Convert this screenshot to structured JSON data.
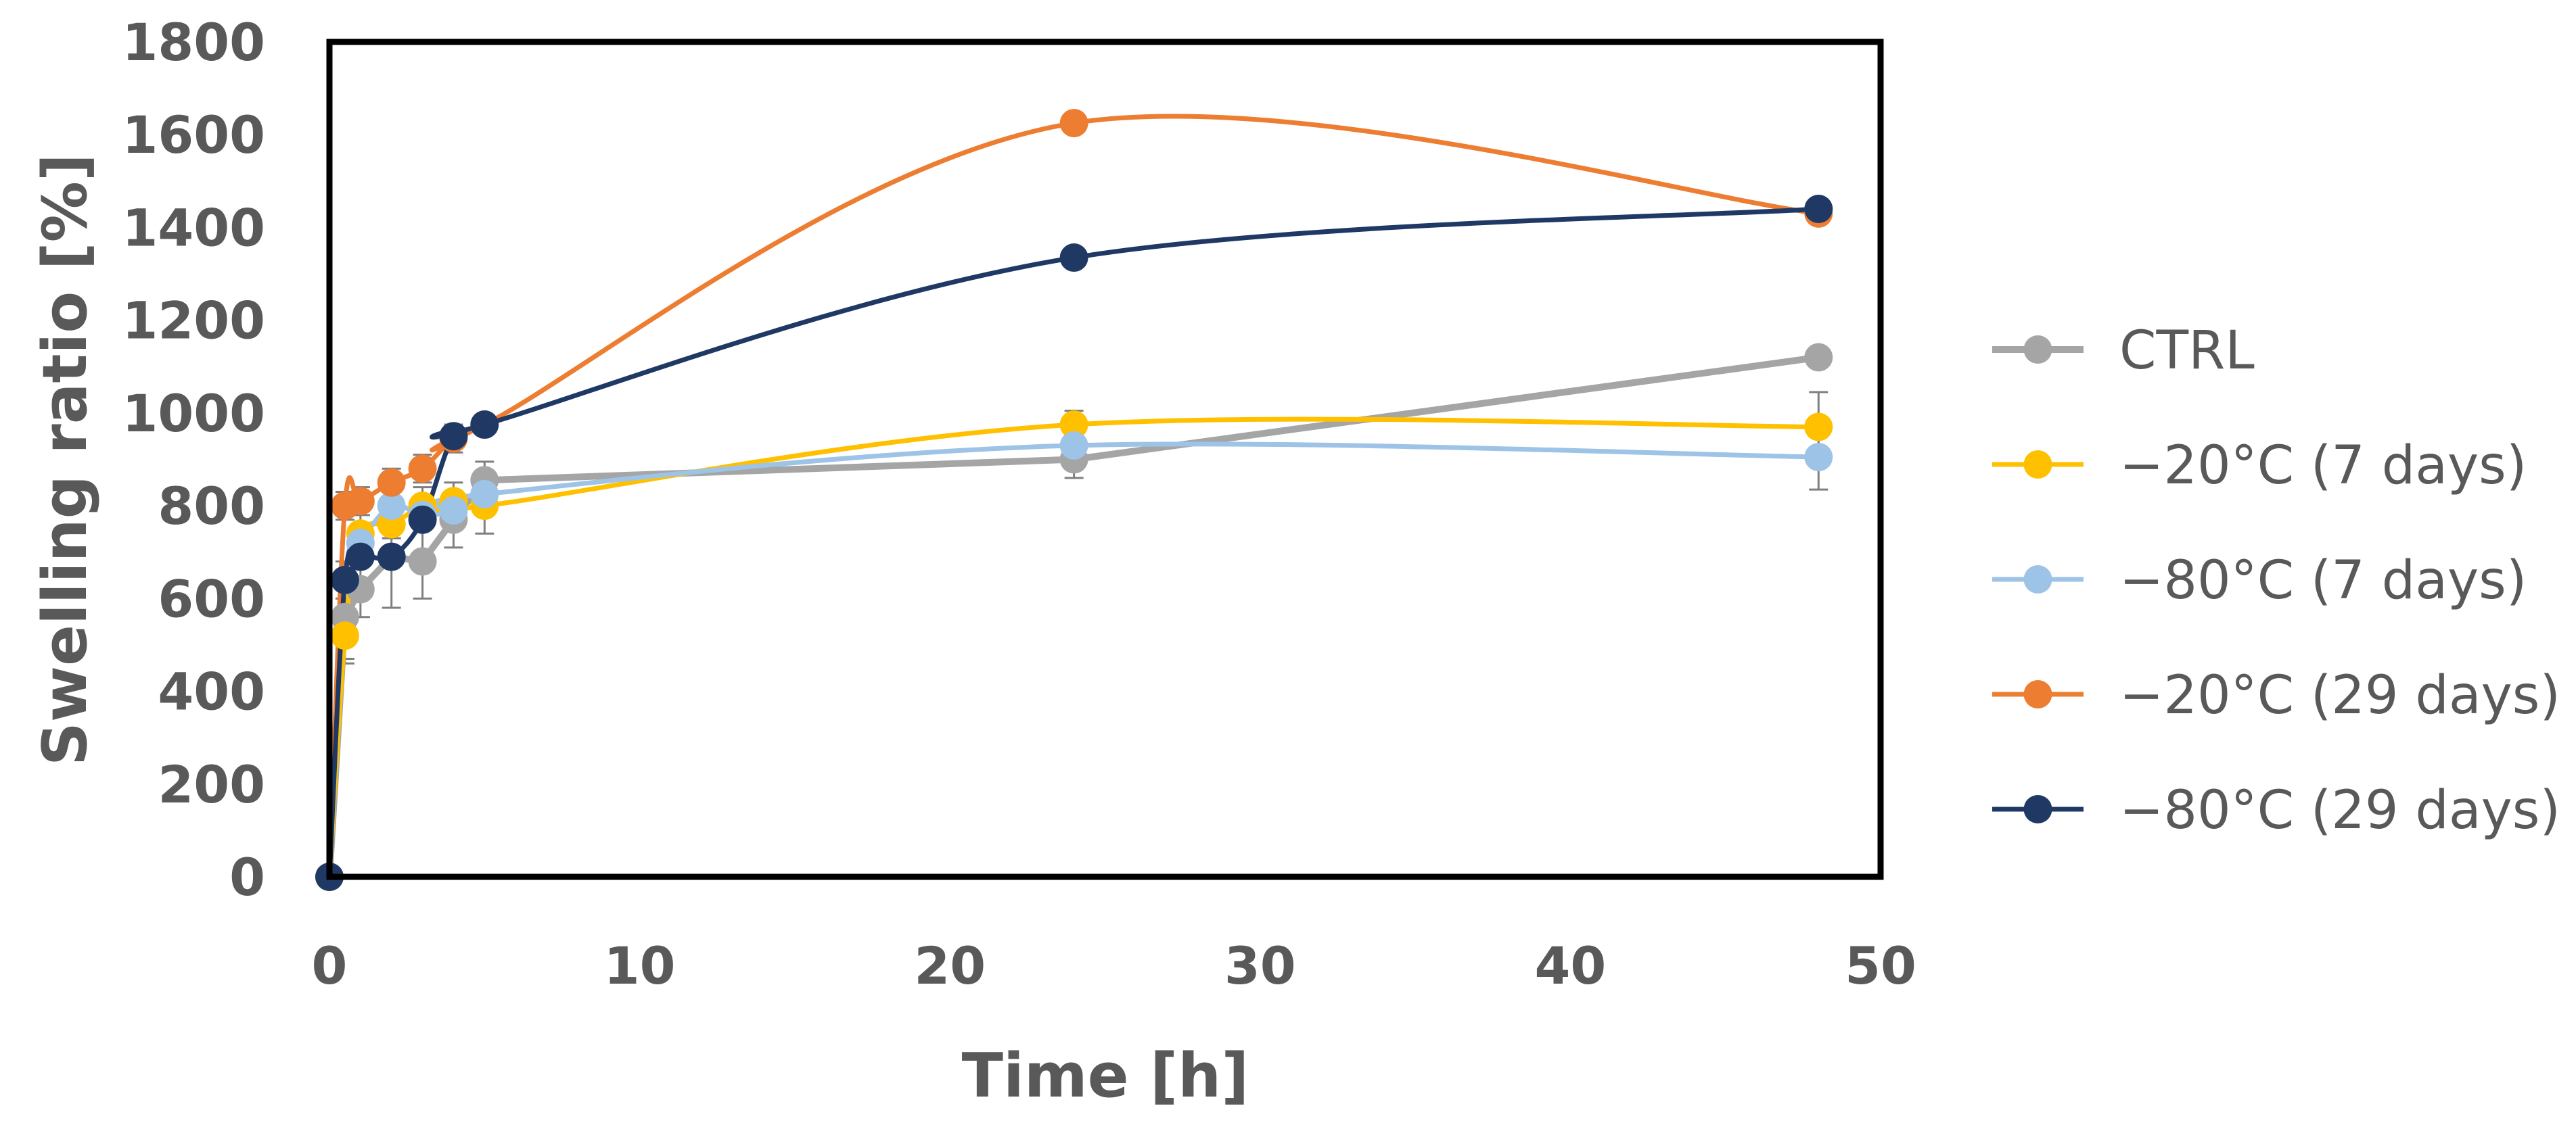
{
  "chart_data": {
    "type": "line",
    "title": "",
    "xlabel": "Time [h]",
    "ylabel": "Swelling ratio [%]",
    "xlim": [
      0,
      50
    ],
    "ylim": [
      0,
      1800
    ],
    "xticks": [
      0,
      10,
      20,
      30,
      40,
      50
    ],
    "yticks": [
      0,
      200,
      400,
      600,
      800,
      1000,
      1200,
      1400,
      1600,
      1800
    ],
    "grid": false,
    "legend_position": "right",
    "series": [
      {
        "name": "CTRL",
        "color": "#A5A5A5",
        "smooth": false,
        "x": [
          0,
          0.5,
          1,
          2,
          3,
          4,
          5,
          24,
          48
        ],
        "y": [
          0,
          560,
          620,
          690,
          680,
          770,
          855,
          900,
          1120
        ],
        "err": [
          0,
          90,
          60,
          110,
          80,
          60,
          40,
          40,
          20
        ]
      },
      {
        "name": "−20°C (7 days)",
        "color": "#FFC000",
        "smooth": true,
        "x": [
          0,
          0.5,
          1,
          2,
          3,
          4,
          5,
          24,
          48
        ],
        "y": [
          0,
          520,
          740,
          760,
          800,
          810,
          800,
          975,
          970
        ],
        "err": [
          0,
          60,
          50,
          30,
          40,
          40,
          60,
          30,
          75
        ]
      },
      {
        "name": "−80°C (7 days)",
        "color": "#9DC3E6",
        "smooth": true,
        "x": [
          0,
          0.5,
          1,
          2,
          3,
          4,
          5,
          24,
          48
        ],
        "y": [
          0,
          640,
          720,
          800,
          780,
          790,
          825,
          930,
          905
        ],
        "err": [
          0,
          40,
          40,
          30,
          30,
          40,
          30,
          30,
          70
        ]
      },
      {
        "name": "−20°C (29 days)",
        "color": "#ED7D31",
        "smooth": true,
        "x": [
          0,
          0.5,
          1,
          2,
          3,
          4,
          5,
          24,
          48
        ],
        "y": [
          0,
          800,
          810,
          850,
          880,
          945,
          975,
          1625,
          1430
        ],
        "err": [
          0,
          30,
          30,
          30,
          30,
          30,
          20,
          20,
          15
        ]
      },
      {
        "name": "−80°C (29 days)",
        "color": "#1F3864",
        "smooth": true,
        "x": [
          0,
          0.5,
          1,
          2,
          3,
          4,
          5,
          24,
          48
        ],
        "y": [
          0,
          640,
          690,
          690,
          770,
          950,
          975,
          1335,
          1440
        ],
        "err": [
          0,
          20,
          20,
          20,
          20,
          20,
          20,
          15,
          15
        ]
      }
    ]
  }
}
